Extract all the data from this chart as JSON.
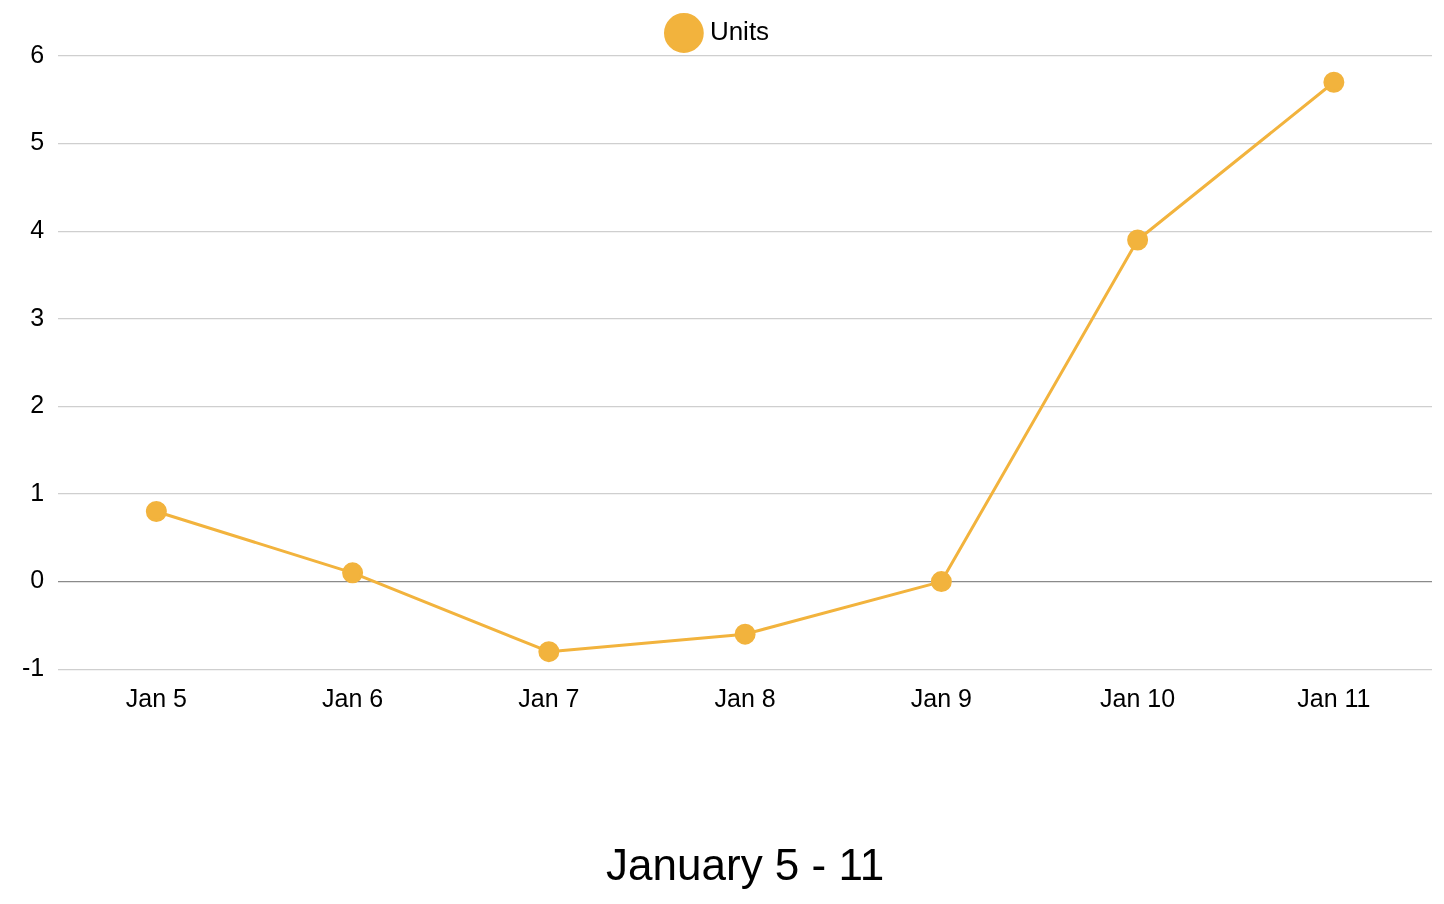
{
  "chart_data": {
    "type": "line",
    "xlabel": "January 5 - 11",
    "categories": [
      "Jan 5",
      "Jan 6",
      "Jan 7",
      "Jan 8",
      "Jan 9",
      "Jan 10",
      "Jan 11"
    ],
    "series": [
      {
        "name": "Units",
        "color": "#f2b33d",
        "values": [
          0.8,
          0.1,
          -0.8,
          -0.6,
          0,
          3.9,
          5.7
        ]
      }
    ],
    "ylim": [
      -1,
      6
    ],
    "yticks": [
      -1,
      0,
      1,
      2,
      3,
      4,
      5,
      6
    ],
    "grid": "y",
    "legend": "top",
    "marker": "circle",
    "line_style": "solid"
  }
}
